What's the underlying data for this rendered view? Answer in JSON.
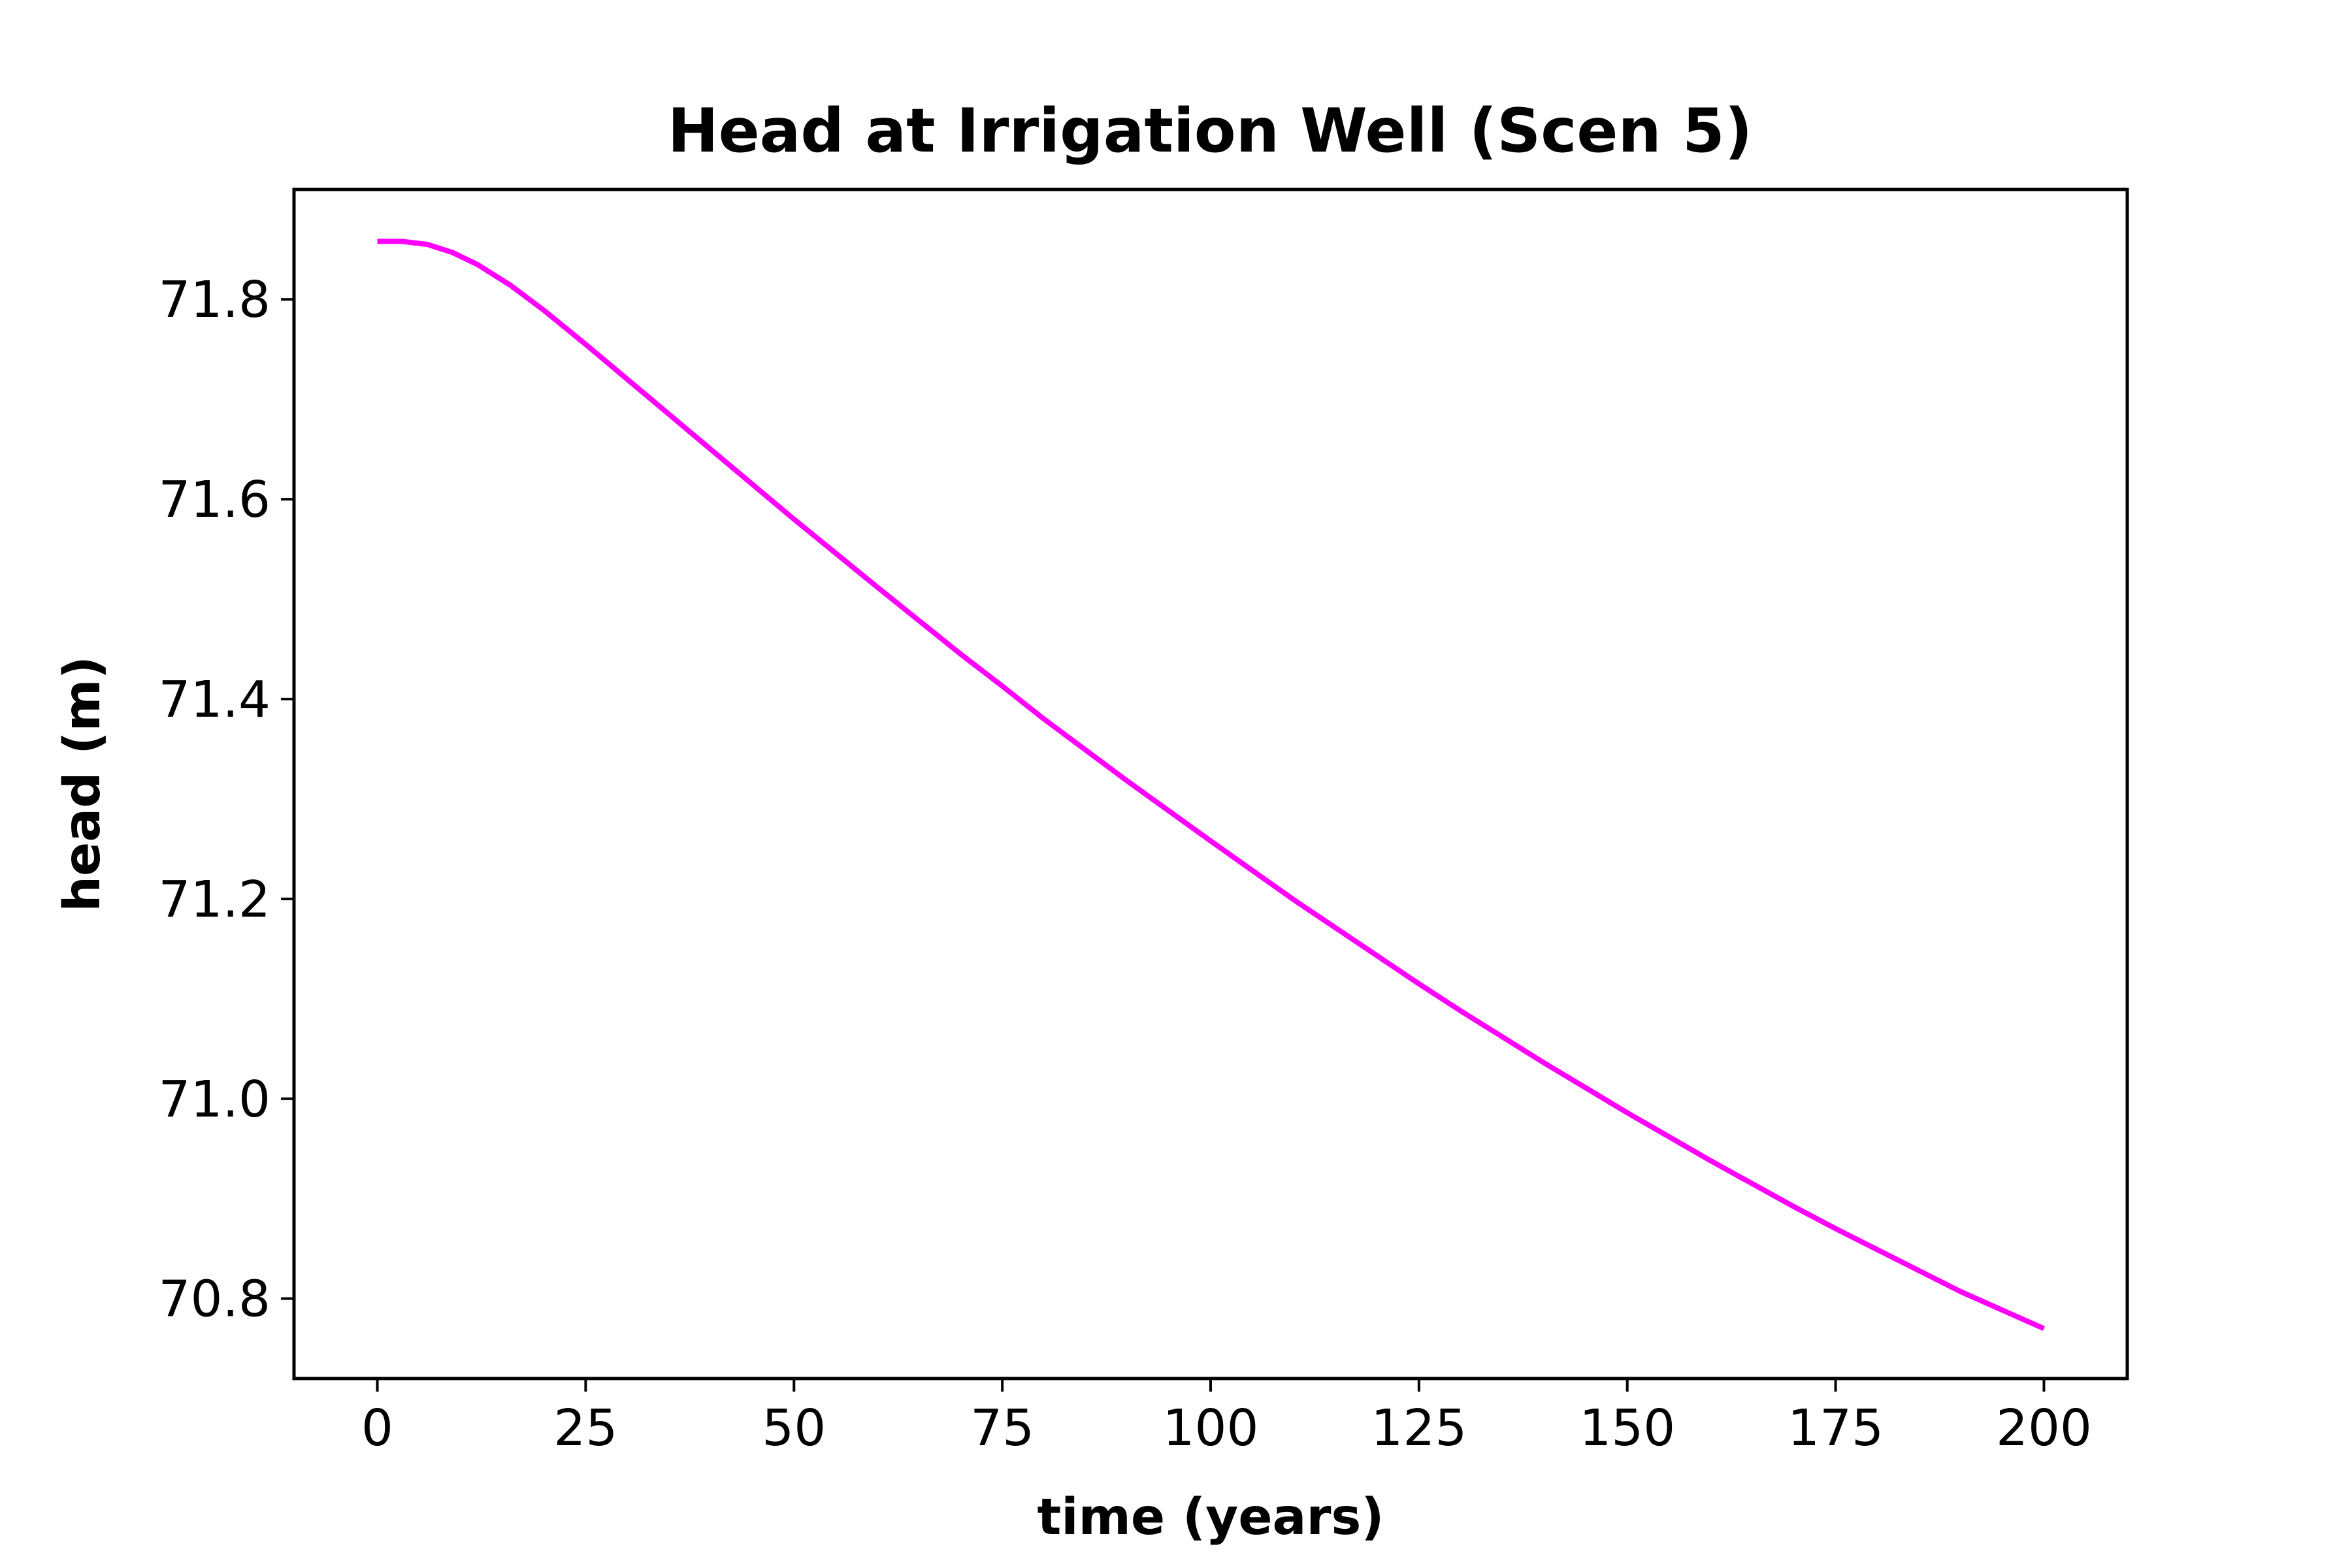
{
  "chart_data": {
    "type": "line",
    "title": "Head at Irrigation Well (Scen 5)",
    "xlabel": "time (years)",
    "ylabel": "head (m)",
    "xlim": [
      -10,
      210
    ],
    "ylim": [
      70.72,
      71.91
    ],
    "x_ticks": [
      0,
      25,
      50,
      75,
      100,
      125,
      150,
      175,
      200
    ],
    "x_tick_labels": [
      "0",
      "25",
      "50",
      "75",
      "100",
      "125",
      "150",
      "175",
      "200"
    ],
    "y_ticks": [
      70.8,
      71.0,
      71.2,
      71.4,
      71.6,
      71.8
    ],
    "y_tick_labels": [
      "70.8",
      "71.0",
      "71.2",
      "71.4",
      "71.6",
      "71.8"
    ],
    "grid": false,
    "legend": false,
    "series": [
      {
        "color": "#ff00ff",
        "x": [
          0,
          3,
          6,
          9,
          12,
          16,
          20,
          25,
          30,
          40,
          50,
          60,
          70,
          75,
          80,
          90,
          100,
          110,
          120,
          125,
          130,
          140,
          150,
          160,
          170,
          175,
          180,
          190,
          200
        ],
        "y": [
          71.858,
          71.858,
          71.855,
          71.847,
          71.835,
          71.814,
          71.789,
          71.755,
          71.72,
          71.65,
          71.58,
          71.512,
          71.445,
          71.413,
          71.38,
          71.318,
          71.258,
          71.199,
          71.143,
          71.115,
          71.088,
          71.036,
          70.986,
          70.938,
          70.892,
          70.87,
          70.849,
          70.807,
          70.77
        ]
      }
    ]
  }
}
